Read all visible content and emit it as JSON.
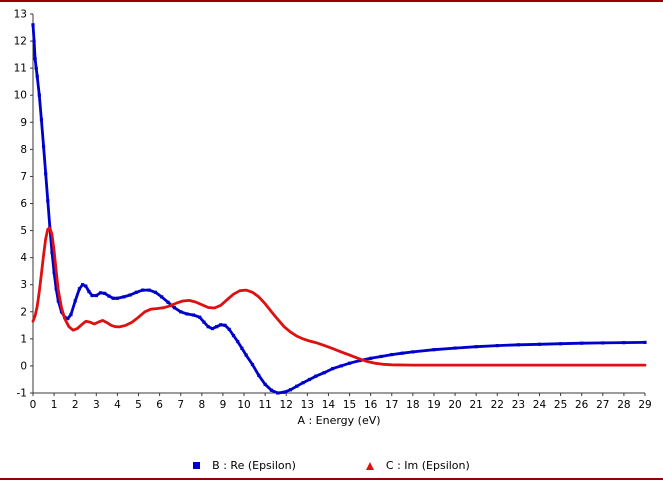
{
  "frame": {
    "top_border_color": "#990000",
    "bottom_border_color": "#990000",
    "background": "#ffffff"
  },
  "chart_data": {
    "type": "line",
    "title": "",
    "xlabel": "A : Energy (eV)",
    "ylabel": "",
    "xlim": [
      0,
      29
    ],
    "ylim": [
      -1,
      13
    ],
    "grid": false,
    "legend_position": "bottom",
    "xticks": [
      0,
      1,
      2,
      3,
      4,
      5,
      6,
      7,
      8,
      9,
      10,
      11,
      12,
      13,
      14,
      15,
      16,
      17,
      18,
      19,
      20,
      21,
      22,
      23,
      24,
      25,
      26,
      27,
      28,
      29
    ],
    "yticks": [
      -1,
      0,
      1,
      2,
      3,
      4,
      5,
      6,
      7,
      8,
      9,
      10,
      11,
      12,
      13
    ],
    "series": [
      {
        "name": "B : Re (Epsilon)",
        "color": "#0000cd",
        "marker": "square",
        "points": [
          [
            0,
            12.6
          ],
          [
            0.05,
            12.0
          ],
          [
            0.1,
            11.35
          ],
          [
            0.15,
            11.0
          ],
          [
            0.2,
            10.7
          ],
          [
            0.3,
            10.0
          ],
          [
            0.4,
            9.1
          ],
          [
            0.5,
            8.1
          ],
          [
            0.6,
            7.1
          ],
          [
            0.7,
            6.1
          ],
          [
            0.8,
            5.1
          ],
          [
            0.9,
            4.2
          ],
          [
            1.0,
            3.45
          ],
          [
            1.1,
            2.85
          ],
          [
            1.2,
            2.4
          ],
          [
            1.35,
            2.0
          ],
          [
            1.5,
            1.8
          ],
          [
            1.65,
            1.75
          ],
          [
            1.8,
            1.9
          ],
          [
            2.0,
            2.4
          ],
          [
            2.2,
            2.85
          ],
          [
            2.35,
            3.0
          ],
          [
            2.5,
            2.95
          ],
          [
            2.65,
            2.75
          ],
          [
            2.8,
            2.6
          ],
          [
            3.0,
            2.6
          ],
          [
            3.2,
            2.7
          ],
          [
            3.4,
            2.68
          ],
          [
            3.6,
            2.58
          ],
          [
            3.8,
            2.5
          ],
          [
            4.0,
            2.5
          ],
          [
            4.3,
            2.55
          ],
          [
            4.6,
            2.62
          ],
          [
            4.9,
            2.72
          ],
          [
            5.2,
            2.8
          ],
          [
            5.5,
            2.8
          ],
          [
            5.8,
            2.72
          ],
          [
            6.1,
            2.55
          ],
          [
            6.4,
            2.35
          ],
          [
            6.7,
            2.15
          ],
          [
            7.0,
            2.0
          ],
          [
            7.3,
            1.92
          ],
          [
            7.6,
            1.88
          ],
          [
            7.9,
            1.8
          ],
          [
            8.1,
            1.62
          ],
          [
            8.3,
            1.45
          ],
          [
            8.5,
            1.38
          ],
          [
            8.7,
            1.45
          ],
          [
            8.9,
            1.52
          ],
          [
            9.1,
            1.5
          ],
          [
            9.3,
            1.35
          ],
          [
            9.5,
            1.12
          ],
          [
            9.7,
            0.9
          ],
          [
            9.9,
            0.65
          ],
          [
            10.1,
            0.4
          ],
          [
            10.4,
            0.05
          ],
          [
            10.7,
            -0.35
          ],
          [
            11.0,
            -0.68
          ],
          [
            11.3,
            -0.9
          ],
          [
            11.6,
            -1.0
          ],
          [
            11.9,
            -0.97
          ],
          [
            12.2,
            -0.88
          ],
          [
            12.5,
            -0.75
          ],
          [
            12.8,
            -0.62
          ],
          [
            13.1,
            -0.5
          ],
          [
            13.4,
            -0.38
          ],
          [
            13.8,
            -0.25
          ],
          [
            14.2,
            -0.1
          ],
          [
            14.6,
            0.0
          ],
          [
            15.0,
            0.1
          ],
          [
            15.5,
            0.2
          ],
          [
            16.0,
            0.28
          ],
          [
            16.5,
            0.35
          ],
          [
            17.0,
            0.42
          ],
          [
            17.5,
            0.47
          ],
          [
            18.0,
            0.52
          ],
          [
            19.0,
            0.6
          ],
          [
            20.0,
            0.66
          ],
          [
            21.0,
            0.71
          ],
          [
            22.0,
            0.75
          ],
          [
            23.0,
            0.78
          ],
          [
            24.0,
            0.8
          ],
          [
            25.0,
            0.82
          ],
          [
            26.0,
            0.84
          ],
          [
            27.0,
            0.85
          ],
          [
            28.0,
            0.86
          ],
          [
            29.0,
            0.87
          ]
        ]
      },
      {
        "name": "C : Im (Epsilon)",
        "color": "#dd1111",
        "marker": "triangle",
        "points": [
          [
            0,
            1.65
          ],
          [
            0.1,
            1.85
          ],
          [
            0.2,
            2.2
          ],
          [
            0.3,
            2.75
          ],
          [
            0.4,
            3.4
          ],
          [
            0.5,
            4.1
          ],
          [
            0.6,
            4.7
          ],
          [
            0.7,
            5.05
          ],
          [
            0.8,
            5.1
          ],
          [
            0.9,
            4.85
          ],
          [
            1.0,
            4.25
          ],
          [
            1.1,
            3.5
          ],
          [
            1.2,
            2.8
          ],
          [
            1.35,
            2.15
          ],
          [
            1.5,
            1.75
          ],
          [
            1.7,
            1.45
          ],
          [
            1.9,
            1.32
          ],
          [
            2.1,
            1.38
          ],
          [
            2.3,
            1.52
          ],
          [
            2.5,
            1.65
          ],
          [
            2.7,
            1.62
          ],
          [
            2.9,
            1.55
          ],
          [
            3.1,
            1.62
          ],
          [
            3.3,
            1.68
          ],
          [
            3.5,
            1.6
          ],
          [
            3.7,
            1.5
          ],
          [
            3.9,
            1.45
          ],
          [
            4.1,
            1.44
          ],
          [
            4.4,
            1.5
          ],
          [
            4.7,
            1.62
          ],
          [
            5.0,
            1.8
          ],
          [
            5.3,
            2.0
          ],
          [
            5.6,
            2.1
          ],
          [
            5.9,
            2.12
          ],
          [
            6.2,
            2.15
          ],
          [
            6.5,
            2.22
          ],
          [
            6.8,
            2.32
          ],
          [
            7.1,
            2.4
          ],
          [
            7.4,
            2.42
          ],
          [
            7.7,
            2.36
          ],
          [
            8.0,
            2.26
          ],
          [
            8.3,
            2.16
          ],
          [
            8.6,
            2.14
          ],
          [
            8.9,
            2.24
          ],
          [
            9.2,
            2.45
          ],
          [
            9.5,
            2.65
          ],
          [
            9.8,
            2.78
          ],
          [
            10.1,
            2.8
          ],
          [
            10.4,
            2.72
          ],
          [
            10.7,
            2.55
          ],
          [
            11.0,
            2.3
          ],
          [
            11.3,
            2.0
          ],
          [
            11.6,
            1.72
          ],
          [
            11.9,
            1.45
          ],
          [
            12.2,
            1.25
          ],
          [
            12.5,
            1.1
          ],
          [
            12.8,
            1.0
          ],
          [
            13.1,
            0.92
          ],
          [
            13.4,
            0.86
          ],
          [
            13.8,
            0.76
          ],
          [
            14.2,
            0.64
          ],
          [
            14.6,
            0.52
          ],
          [
            15.0,
            0.4
          ],
          [
            15.4,
            0.28
          ],
          [
            15.8,
            0.17
          ],
          [
            16.2,
            0.1
          ],
          [
            16.6,
            0.06
          ],
          [
            17.0,
            0.04
          ],
          [
            18.0,
            0.03
          ],
          [
            19.0,
            0.03
          ],
          [
            20.0,
            0.03
          ],
          [
            22.0,
            0.03
          ],
          [
            24.0,
            0.03
          ],
          [
            26.0,
            0.03
          ],
          [
            28.0,
            0.03
          ],
          [
            29.0,
            0.03
          ]
        ]
      }
    ]
  }
}
